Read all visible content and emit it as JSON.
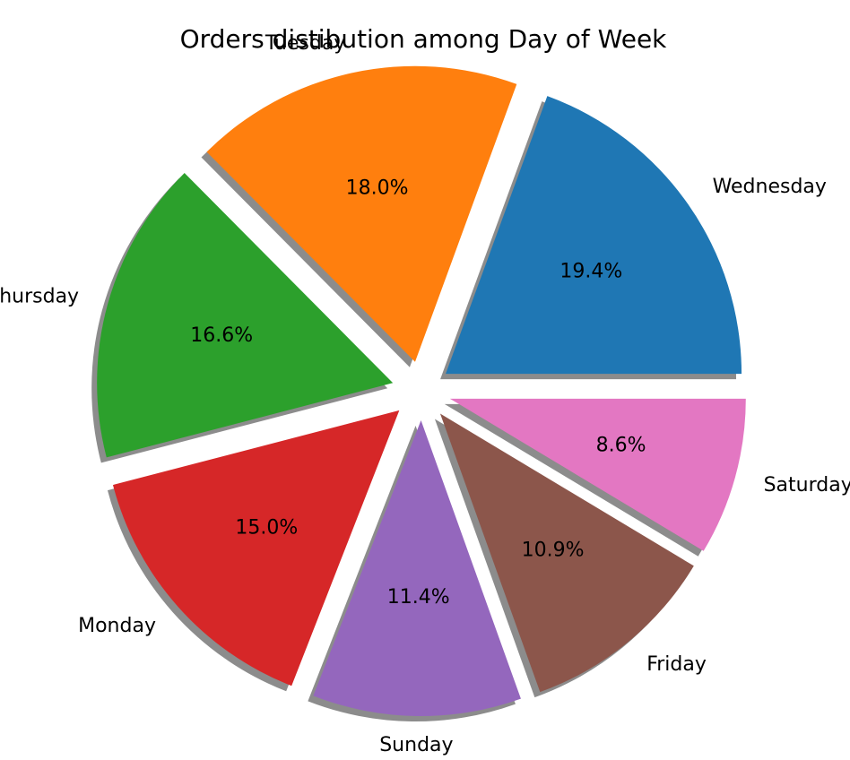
{
  "chart_data": {
    "type": "pie",
    "title": "Orders distibution among Day of Week",
    "slices": [
      {
        "label": "Wednesday",
        "value": 19.4,
        "pct_label": "19.4%",
        "color": "#1f77b4"
      },
      {
        "label": "Tuesday",
        "value": 18.0,
        "pct_label": "18.0%",
        "color": "#ff7f0e"
      },
      {
        "label": "Thursday",
        "value": 16.6,
        "pct_label": "16.6%",
        "color": "#2ca02c"
      },
      {
        "label": "Monday",
        "value": 15.0,
        "pct_label": "15.0%",
        "color": "#d62728"
      },
      {
        "label": "Sunday",
        "value": 11.4,
        "pct_label": "11.4%",
        "color": "#9467bd"
      },
      {
        "label": "Friday",
        "value": 10.9,
        "pct_label": "10.9%",
        "color": "#8c564b"
      },
      {
        "label": "Saturday",
        "value": 8.6,
        "pct_label": "8.6%",
        "color": "#e377c2"
      }
    ],
    "start_angle_deg": 0,
    "direction": "counterclockwise",
    "exploded": true,
    "shadow": true,
    "legend": "none"
  }
}
